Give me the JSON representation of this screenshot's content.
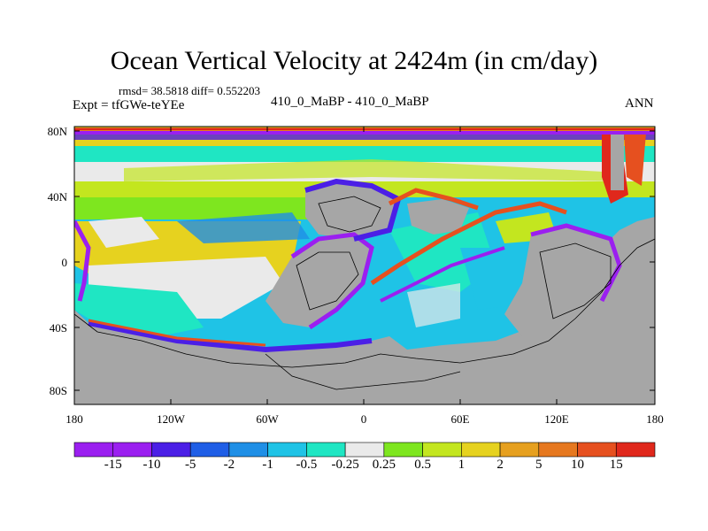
{
  "title": "Ocean Vertical Velocity at 2424m (in cm/day)",
  "stats": "rmsd= 38.5818 diff= 0.552203",
  "case_label": "410_0_MaBP - 410_0_MaBP",
  "expt_label": "Expt = tfGWe-teYEe",
  "season": "ANN",
  "lat_labels": [
    "80N",
    "40N",
    "0",
    "40S",
    "80S"
  ],
  "lon_labels": [
    "180",
    "120W",
    "60W",
    "0",
    "60E",
    "120E",
    "180"
  ],
  "colorbar": {
    "labels": [
      "-15",
      "-10",
      "-5",
      "-2",
      "-1",
      "-0.5",
      "-0.25",
      "0.25",
      "0.5",
      "1",
      "2",
      "5",
      "10",
      "15"
    ],
    "colors": [
      "#9b1ff0",
      "#4b1fe6",
      "#1f5ee6",
      "#1f8fe6",
      "#1fc3e6",
      "#1fe6c3",
      "#eaeaea",
      "#7ee61f",
      "#c3e61f",
      "#e6d21f",
      "#e6a01f",
      "#e6781f",
      "#e6501f",
      "#e0281c"
    ]
  },
  "land_color": "#a6a6a6"
}
